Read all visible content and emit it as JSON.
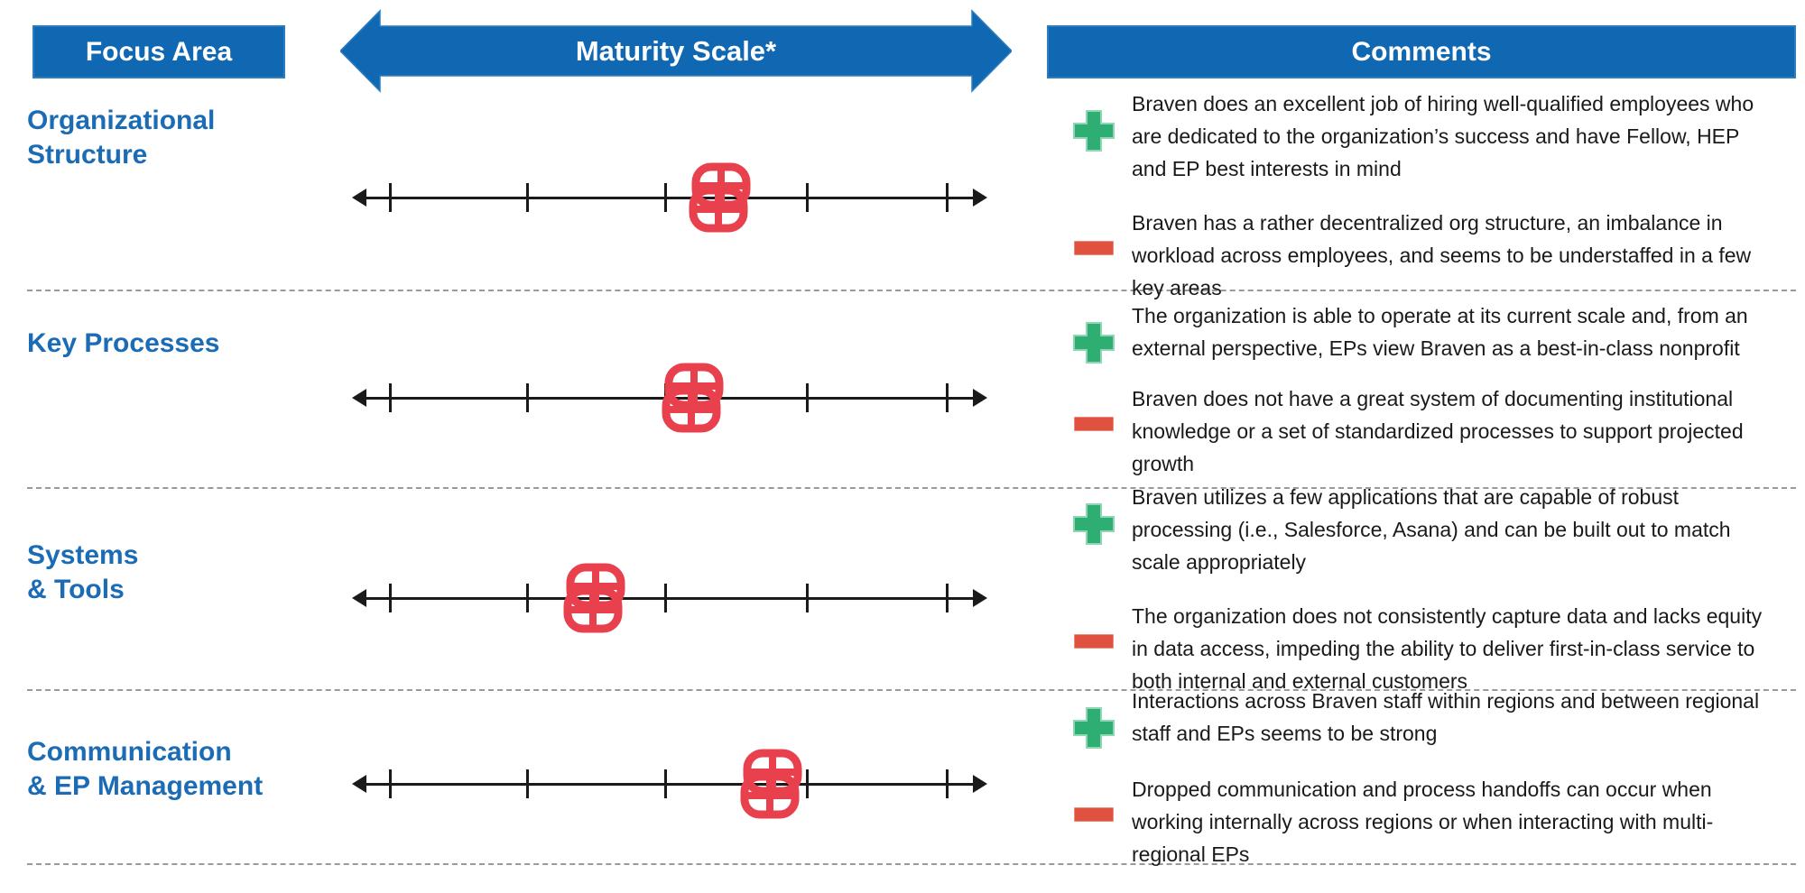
{
  "header": {
    "focus_area": "Focus Area",
    "maturity_scale": "Maturity Scale*",
    "comments": "Comments"
  },
  "colors": {
    "header_blue": "#1068B3",
    "label_blue": "#1B6CB5",
    "marker_red": "#E8414D",
    "plus_green": "#2EAE73",
    "minus_red": "#E0523F",
    "text": "#1a1a1a"
  },
  "scale": {
    "tick_count": 5,
    "tick_positions_pct": [
      5.97,
      27.56,
      49.43,
      71.73,
      93.61
    ]
  },
  "rows": [
    {
      "focus_area": "Organizational\nStructure",
      "maturity_pct": 58.0,
      "positive": "Braven does an excellent job of hiring well-qualified employees who are dedicated to the organization’s success and have Fellow, HEP and EP best interests in mind",
      "negative": "Braven has a rather decentralized org structure, an imbalance in workload across employees, and seems to be understaffed in a few key areas"
    },
    {
      "focus_area": "Key Processes",
      "maturity_pct": 53.7,
      "positive": "The organization is able to operate at its current scale and, from an external perspective, EPs view Braven as a best-in-class nonprofit",
      "negative": "Braven does not have a great system of documenting institutional knowledge or a set of standardized processes to support projected growth"
    },
    {
      "focus_area": "Systems\n& Tools",
      "maturity_pct": 38.2,
      "positive": "Braven utilizes a few applications that are capable of robust processing (i.e., Salesforce, Asana) and can be built out to match scale appropriately",
      "negative": "The organization does not consistently capture data and lacks equity in data access, impeding the ability to deliver first-in-class service to both internal and external customers"
    },
    {
      "focus_area": "Communication\n& EP Management",
      "maturity_pct": 66.1,
      "positive": "Interactions across Braven staff within regions and between regional staff and EPs seems to be strong",
      "negative": "Dropped communication and process handoffs can occur when working internally across regions or when interacting with multi-regional EPs"
    }
  ]
}
